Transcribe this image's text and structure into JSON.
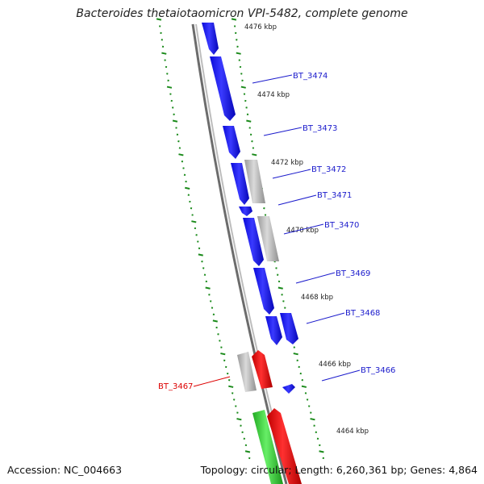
{
  "title": "Bacteroides thetaiotaomicron VPI-5482, complete genome",
  "footer": {
    "accession_label": "Accession:",
    "accession": "NC_004663",
    "topology_label": "Topology:",
    "topology": "circular;",
    "length_label": "Length:",
    "length": "6,260,361 bp;",
    "genes_label": "Genes:",
    "genes": "4,864"
  },
  "colors": {
    "backbone": "#777777",
    "tick": "#1a8a1a",
    "forward_gene": "#1414f0",
    "pseudo_gene": "#b8b8b8",
    "red_gene": "#ee1111",
    "green_gene": "#33cc33",
    "blue_label": "#1b1bcc",
    "red_label": "#dd0000"
  },
  "ticks": [
    "4476 kbp",
    "4474 kbp",
    "4472 kbp",
    "4470 kbp",
    "4468 kbp",
    "4466 kbp",
    "4464 kbp"
  ],
  "gene_labels": [
    {
      "text": "BT_3474",
      "color": "blue"
    },
    {
      "text": "BT_3473",
      "color": "blue"
    },
    {
      "text": "BT_3472",
      "color": "blue"
    },
    {
      "text": "BT_3471",
      "color": "blue"
    },
    {
      "text": "BT_3470",
      "color": "blue"
    },
    {
      "text": "BT_3469",
      "color": "blue"
    },
    {
      "text": "BT_3468",
      "color": "blue"
    },
    {
      "text": "BT_3466",
      "color": "blue"
    },
    {
      "text": "BT_3467",
      "color": "red"
    }
  ]
}
